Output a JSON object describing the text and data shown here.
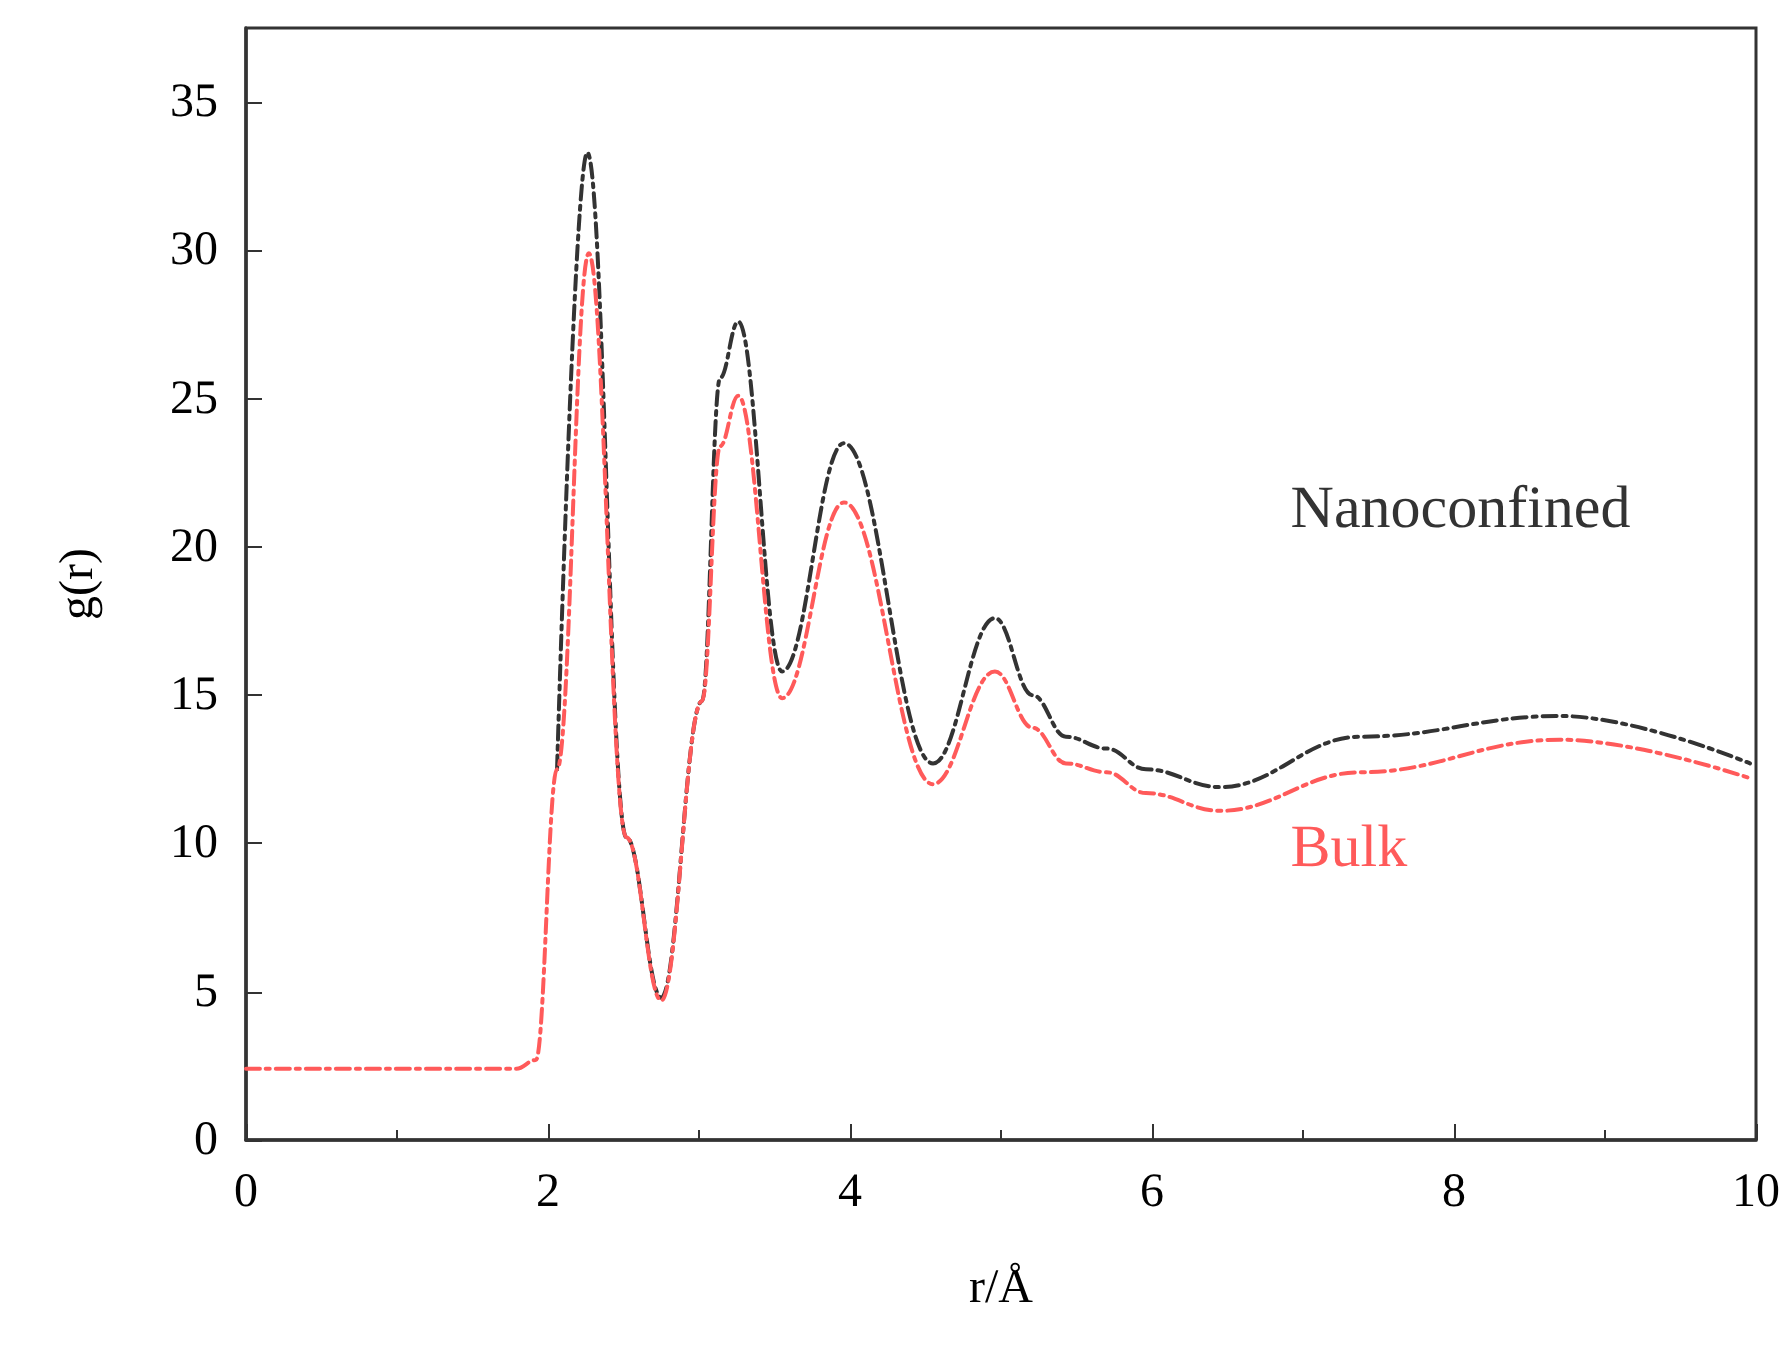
{
  "chart_data": {
    "type": "line",
    "xlabel": "r/Å",
    "ylabel": "g(r)",
    "xlim": [
      0,
      10
    ],
    "xticks": [
      0,
      2,
      4,
      6,
      8,
      10
    ],
    "ylim": [
      0,
      37.5
    ],
    "yticks": [
      0,
      5,
      10,
      15,
      20,
      25,
      30,
      35
    ],
    "grid": false,
    "legend": false,
    "marker": "none",
    "line_style": "dashed",
    "series": [
      {
        "name": "Nanoconfined",
        "color": "#333333",
        "x": [
          2.06,
          2.26,
          2.52,
          2.75,
          3.02,
          3.14,
          3.26,
          3.55,
          3.96,
          4.55,
          4.96,
          5.21,
          5.43,
          5.7,
          5.96,
          6.45,
          7.38,
          8.7,
          9.96
        ],
        "values": [
          12.5,
          33.3,
          10.2,
          4.8,
          14.8,
          25.7,
          27.6,
          15.8,
          23.5,
          12.7,
          17.6,
          15.0,
          13.6,
          13.2,
          12.5,
          11.9,
          13.6,
          14.3,
          12.7
        ]
      },
      {
        "name": "Bulk",
        "color": "#ff5a5a",
        "x": [
          0,
          1.79,
          1.92,
          2.06,
          2.27,
          2.52,
          2.75,
          3.02,
          3.14,
          3.26,
          3.55,
          3.96,
          4.55,
          4.96,
          5.21,
          5.43,
          5.7,
          5.96,
          6.45,
          7.38,
          8.7,
          9.96
        ],
        "values": [
          2.4,
          2.4,
          2.7,
          12.5,
          29.9,
          10.2,
          4.7,
          14.8,
          23.4,
          25.1,
          14.9,
          21.5,
          12.0,
          15.8,
          13.9,
          12.7,
          12.4,
          11.7,
          11.1,
          12.4,
          13.5,
          12.2
        ]
      }
    ]
  }
}
